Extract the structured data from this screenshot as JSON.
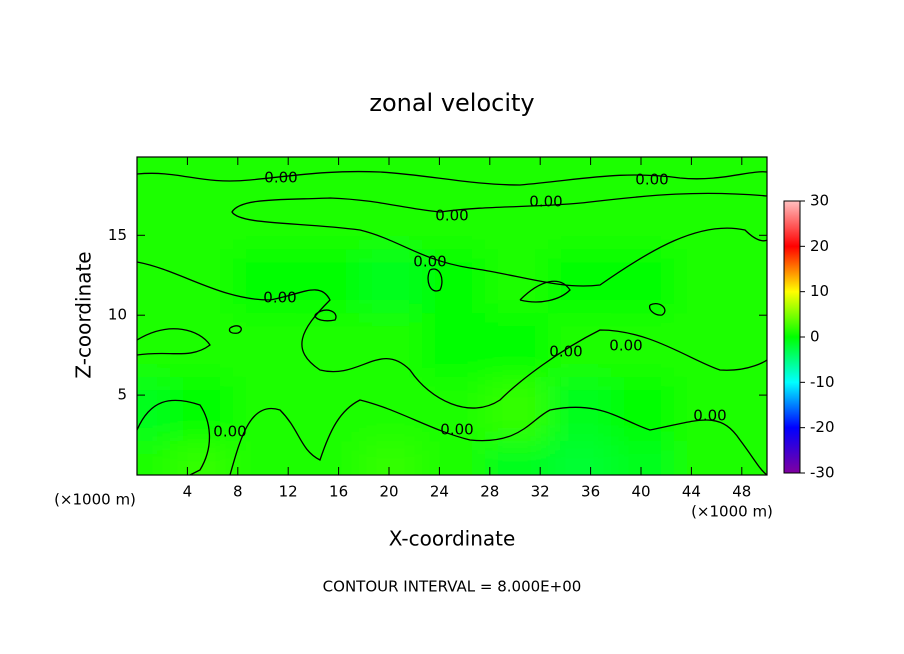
{
  "chart_data": {
    "type": "contour",
    "title": "zonal velocity",
    "x_label": "X-coordinate",
    "y_label": "Z-coordinate",
    "x_unit": "(×1000 m)",
    "y_unit": "(×1000 m)",
    "footer": "CONTOUR INTERVAL = 8.000E+00",
    "xlim": [
      0,
      50
    ],
    "ylim": [
      0,
      19.9
    ],
    "xticks": [
      4,
      8,
      12,
      16,
      20,
      24,
      28,
      32,
      36,
      40,
      44,
      48
    ],
    "yticks": [
      5,
      10,
      15
    ],
    "z_x": [
      2.5,
      7.5,
      12.5,
      17.5,
      22.5,
      27.5,
      32.5,
      37.5,
      42.5,
      47.5
    ],
    "z_y": [
      2,
      6,
      10,
      14,
      18
    ],
    "z": [
      [
        1,
        2,
        1,
        1,
        2,
        1,
        -1,
        -2,
        -1,
        1
      ],
      [
        -1,
        0,
        1,
        1,
        1,
        1,
        2,
        -1,
        0,
        1
      ],
      [
        1,
        1,
        1,
        1,
        1,
        0,
        0,
        1,
        1,
        1
      ],
      [
        1,
        1,
        0,
        0,
        -1,
        0,
        1,
        0,
        0,
        1
      ],
      [
        1,
        1,
        1,
        1,
        1,
        1,
        1,
        1,
        1,
        1
      ]
    ],
    "colorbar_lim": [
      -30,
      30
    ],
    "colorbar_ticks": [
      -30,
      -20,
      -10,
      0,
      10,
      20,
      30
    ],
    "colormap": [
      "#8000a0",
      "#0000ff",
      "#00ffff",
      "#00ff00",
      "#ffff00",
      "#ff0000",
      "#ffc0c0"
    ],
    "contour_labels": [
      {
        "value": 0,
        "label": "0.00"
      },
      {
        "value": 0,
        "label": "0.00"
      },
      {
        "value": 0,
        "label": "0.00"
      },
      {
        "value": 0,
        "label": "0.00"
      },
      {
        "value": 0,
        "label": "0.00"
      },
      {
        "value": 0,
        "label": "0.00"
      },
      {
        "value": 0,
        "label": "0.00"
      },
      {
        "value": 0,
        "label": "0.00"
      },
      {
        "value": 0,
        "label": "0.00"
      },
      {
        "value": 0,
        "label": "0.00"
      },
      {
        "value": 0,
        "label": "0.00"
      }
    ]
  }
}
